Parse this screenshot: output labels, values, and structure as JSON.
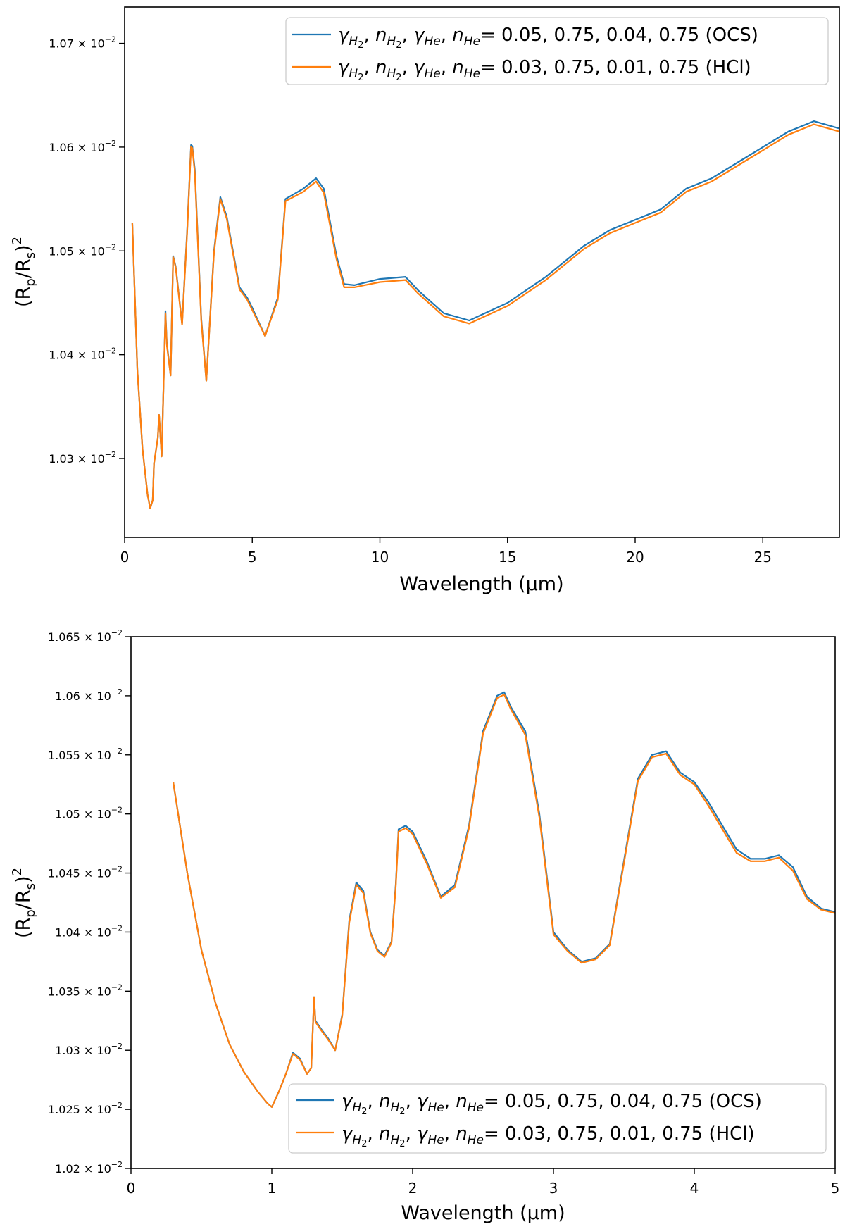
{
  "colors": {
    "ocs": "#1f77b4",
    "hcl": "#ff7f0e",
    "axis": "#000000"
  },
  "legend_entries": {
    "ocs": {
      "prefix_values": "= 0.05, 0.75, 0.04, 0.75 (OCS)"
    },
    "hcl": {
      "prefix_values": "= 0.03, 0.75, 0.01, 0.75 (HCl)"
    }
  },
  "chart_data": [
    {
      "type": "line",
      "xlabel": "Wavelength (μm)",
      "ylabel": "(R_p/R_s)^2",
      "xlim": [
        0,
        28
      ],
      "ylim": [
        0.010224,
        0.010735
      ],
      "xticks": [
        "0",
        "5",
        "10",
        "15",
        "20",
        "25"
      ],
      "xtick_values": [
        0,
        5,
        10,
        15,
        20,
        25
      ],
      "yticks": [
        "1.03 × 10^-2",
        "1.04 × 10^-2",
        "1.05 × 10^-2",
        "1.06 × 10^-2",
        "1.07 × 10^-2"
      ],
      "ytick_values": [
        0.0103,
        0.0104,
        0.0105,
        0.0106,
        0.0107
      ],
      "grid": false,
      "legend_placement": "top-right",
      "series": [
        {
          "name": "γ_H2, n_H2, γ_He, n_He = 0.05, 0.75, 0.04, 0.75 (OCS)",
          "x": [
            0.3,
            0.5,
            0.7,
            0.9,
            1.0,
            1.1,
            1.15,
            1.3,
            1.35,
            1.45,
            1.6,
            1.65,
            1.8,
            1.9,
            2.0,
            2.25,
            2.45,
            2.6,
            2.65,
            2.75,
            3.0,
            3.2,
            3.5,
            3.75,
            4.0,
            4.5,
            4.8,
            5.0,
            5.5,
            6.0,
            6.3,
            7.0,
            7.5,
            7.8,
            8.3,
            8.6,
            9.0,
            10.0,
            11.0,
            11.5,
            12.5,
            13.5,
            15.0,
            16.5,
            18.0,
            19.0,
            20.0,
            21.0,
            22.0,
            23.0,
            24.0,
            25.0,
            26.0,
            27.0,
            28.0
          ],
          "y": [
            0.010527,
            0.010385,
            0.010309,
            0.010265,
            0.010252,
            0.01026,
            0.010295,
            0.01032,
            0.010342,
            0.010302,
            0.010442,
            0.010412,
            0.01038,
            0.010495,
            0.010485,
            0.01043,
            0.01052,
            0.010602,
            0.010601,
            0.010578,
            0.010435,
            0.010375,
            0.0105,
            0.010552,
            0.010533,
            0.010465,
            0.010455,
            0.010445,
            0.010418,
            0.010455,
            0.01055,
            0.01056,
            0.01057,
            0.01056,
            0.010495,
            0.010468,
            0.010467,
            0.010473,
            0.010475,
            0.010462,
            0.01044,
            0.010433,
            0.01045,
            0.010475,
            0.010505,
            0.01052,
            0.01053,
            0.01054,
            0.01056,
            0.01057,
            0.010585,
            0.0106,
            0.010615,
            0.010625,
            0.010618
          ]
        },
        {
          "name": "γ_H2, n_H2, γ_He, n_He = 0.03, 0.75, 0.01, 0.75 (HCl)",
          "x": [
            0.3,
            0.5,
            0.7,
            0.9,
            1.0,
            1.1,
            1.15,
            1.3,
            1.35,
            1.45,
            1.6,
            1.65,
            1.8,
            1.9,
            2.0,
            2.25,
            2.45,
            2.6,
            2.65,
            2.75,
            3.0,
            3.2,
            3.5,
            3.75,
            4.0,
            4.5,
            4.8,
            5.0,
            5.5,
            6.0,
            6.3,
            7.0,
            7.5,
            7.8,
            8.3,
            8.6,
            9.0,
            10.0,
            11.0,
            11.5,
            12.5,
            13.5,
            15.0,
            16.5,
            18.0,
            19.0,
            20.0,
            21.0,
            22.0,
            23.0,
            24.0,
            25.0,
            26.0,
            27.0,
            28.0
          ],
          "y": [
            0.010527,
            0.010385,
            0.010309,
            0.010265,
            0.010252,
            0.01026,
            0.010295,
            0.01032,
            0.010342,
            0.010302,
            0.01044,
            0.01041,
            0.01038,
            0.010494,
            0.010484,
            0.010429,
            0.010518,
            0.0106,
            0.010599,
            0.010575,
            0.010433,
            0.010375,
            0.010498,
            0.01055,
            0.010531,
            0.010463,
            0.010453,
            0.010443,
            0.010418,
            0.010453,
            0.010548,
            0.010557,
            0.010567,
            0.010556,
            0.010492,
            0.010465,
            0.010465,
            0.01047,
            0.010472,
            0.010459,
            0.010437,
            0.01043,
            0.010447,
            0.010472,
            0.010502,
            0.010517,
            0.010527,
            0.010537,
            0.010557,
            0.010567,
            0.010582,
            0.010597,
            0.010612,
            0.010622,
            0.010615
          ]
        }
      ]
    },
    {
      "type": "line",
      "xlabel": "Wavelength (μm)",
      "ylabel": "(R_p/R_s)^2",
      "xlim": [
        0,
        5
      ],
      "ylim": [
        0.0102,
        0.01065
      ],
      "xticks": [
        "0",
        "1",
        "2",
        "3",
        "4",
        "5"
      ],
      "xtick_values": [
        0,
        1,
        2,
        3,
        4,
        5
      ],
      "yticks": [
        "1.02 × 10^-2",
        "1.025 × 10^-2",
        "1.03 × 10^-2",
        "1.035 × 10^-2",
        "1.04 × 10^-2",
        "1.045 × 10^-2",
        "1.05 × 10^-2",
        "1.055 × 10^-2",
        "1.06 × 10^-2",
        "1.065 × 10^-2"
      ],
      "ytick_values": [
        0.0102,
        0.01025,
        0.0103,
        0.01035,
        0.0104,
        0.01045,
        0.0105,
        0.01055,
        0.0106,
        0.01065
      ],
      "grid": false,
      "legend_placement": "bottom-right",
      "series": [
        {
          "name": "γ_H2, n_H2, γ_He, n_He = 0.05, 0.75, 0.04, 0.75 (OCS)",
          "x": [
            0.3,
            0.4,
            0.5,
            0.6,
            0.7,
            0.8,
            0.9,
            0.97,
            1.0,
            1.05,
            1.1,
            1.15,
            1.2,
            1.25,
            1.28,
            1.3,
            1.31,
            1.35,
            1.4,
            1.45,
            1.5,
            1.55,
            1.6,
            1.65,
            1.7,
            1.75,
            1.8,
            1.85,
            1.88,
            1.9,
            1.95,
            2.0,
            2.1,
            2.2,
            2.3,
            2.4,
            2.5,
            2.6,
            2.65,
            2.7,
            2.8,
            2.9,
            3.0,
            3.1,
            3.2,
            3.3,
            3.4,
            3.5,
            3.6,
            3.7,
            3.8,
            3.9,
            4.0,
            4.1,
            4.2,
            4.3,
            4.4,
            4.5,
            4.6,
            4.7,
            4.8,
            4.9,
            5.0
          ],
          "y": [
            0.010527,
            0.01045,
            0.010385,
            0.01034,
            0.010305,
            0.010282,
            0.010265,
            0.010255,
            0.010252,
            0.010265,
            0.01028,
            0.010298,
            0.010293,
            0.01028,
            0.010285,
            0.010345,
            0.010325,
            0.010318,
            0.01031,
            0.0103,
            0.01033,
            0.01041,
            0.010442,
            0.010435,
            0.0104,
            0.010385,
            0.01038,
            0.010392,
            0.01044,
            0.010487,
            0.01049,
            0.010485,
            0.01046,
            0.01043,
            0.01044,
            0.01049,
            0.01057,
            0.0106,
            0.010603,
            0.01059,
            0.01057,
            0.0105,
            0.0104,
            0.010385,
            0.010375,
            0.010378,
            0.01039,
            0.01046,
            0.01053,
            0.01055,
            0.010553,
            0.010535,
            0.010527,
            0.01051,
            0.01049,
            0.01047,
            0.010462,
            0.010462,
            0.010465,
            0.010455,
            0.01043,
            0.01042,
            0.010417
          ]
        },
        {
          "name": "γ_H2, n_H2, γ_He, n_He = 0.03, 0.75, 0.01, 0.75 (HCl)",
          "x": [
            0.3,
            0.4,
            0.5,
            0.6,
            0.7,
            0.8,
            0.9,
            0.97,
            1.0,
            1.05,
            1.1,
            1.15,
            1.2,
            1.25,
            1.28,
            1.3,
            1.31,
            1.35,
            1.4,
            1.45,
            1.5,
            1.55,
            1.6,
            1.65,
            1.7,
            1.75,
            1.8,
            1.85,
            1.88,
            1.9,
            1.95,
            2.0,
            2.1,
            2.2,
            2.3,
            2.4,
            2.5,
            2.6,
            2.65,
            2.7,
            2.8,
            2.9,
            3.0,
            3.1,
            3.2,
            3.3,
            3.4,
            3.5,
            3.6,
            3.7,
            3.8,
            3.9,
            4.0,
            4.1,
            4.2,
            4.3,
            4.4,
            4.5,
            4.6,
            4.7,
            4.8,
            4.9,
            5.0
          ],
          "y": [
            0.010527,
            0.01045,
            0.010385,
            0.01034,
            0.010305,
            0.010282,
            0.010265,
            0.010255,
            0.010252,
            0.010265,
            0.01028,
            0.010297,
            0.010292,
            0.01028,
            0.010285,
            0.010345,
            0.010324,
            0.010317,
            0.010309,
            0.0103,
            0.010329,
            0.010408,
            0.01044,
            0.010433,
            0.010399,
            0.010384,
            0.010379,
            0.010391,
            0.010438,
            0.010485,
            0.010488,
            0.010483,
            0.010458,
            0.010429,
            0.010438,
            0.010488,
            0.010568,
            0.010598,
            0.010601,
            0.010588,
            0.010567,
            0.010497,
            0.010398,
            0.010384,
            0.010374,
            0.010377,
            0.010389,
            0.010458,
            0.010528,
            0.010548,
            0.010551,
            0.010533,
            0.010525,
            0.010507,
            0.010487,
            0.010467,
            0.01046,
            0.01046,
            0.010463,
            0.010452,
            0.010428,
            0.010419,
            0.010416
          ]
        }
      ]
    }
  ]
}
